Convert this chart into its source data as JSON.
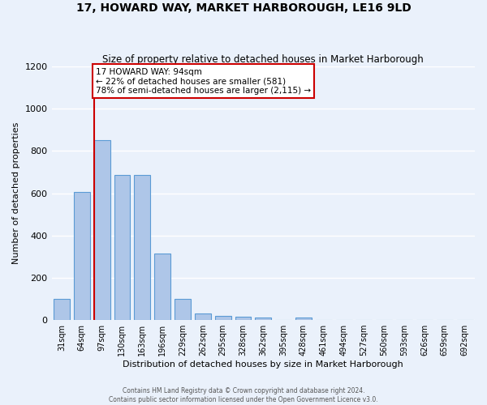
{
  "title": "17, HOWARD WAY, MARKET HARBOROUGH, LE16 9LD",
  "subtitle": "Size of property relative to detached houses in Market Harborough",
  "xlabel": "Distribution of detached houses by size in Market Harborough",
  "ylabel": "Number of detached properties",
  "bin_labels": [
    "31sqm",
    "64sqm",
    "97sqm",
    "130sqm",
    "163sqm",
    "196sqm",
    "229sqm",
    "262sqm",
    "295sqm",
    "328sqm",
    "362sqm",
    "395sqm",
    "428sqm",
    "461sqm",
    "494sqm",
    "527sqm",
    "560sqm",
    "593sqm",
    "626sqm",
    "659sqm",
    "692sqm"
  ],
  "bar_heights": [
    100,
    605,
    853,
    688,
    688,
    315,
    100,
    30,
    20,
    15,
    10,
    0,
    13,
    0,
    0,
    0,
    0,
    0,
    0,
    0,
    0
  ],
  "bar_color": "#aec6e8",
  "bar_edge_color": "#5b9bd5",
  "background_color": "#eaf1fb",
  "grid_color": "#ffffff",
  "vline_color": "#cc0000",
  "annotation_text": "17 HOWARD WAY: 94sqm\n← 22% of detached houses are smaller (581)\n78% of semi-detached houses are larger (2,115) →",
  "annotation_box_color": "#ffffff",
  "annotation_box_edge": "#cc0000",
  "ylim": [
    0,
    1200
  ],
  "yticks": [
    0,
    200,
    400,
    600,
    800,
    1000,
    1200
  ],
  "footer_line1": "Contains HM Land Registry data © Crown copyright and database right 2024.",
  "footer_line2": "Contains public sector information licensed under the Open Government Licence v3.0."
}
